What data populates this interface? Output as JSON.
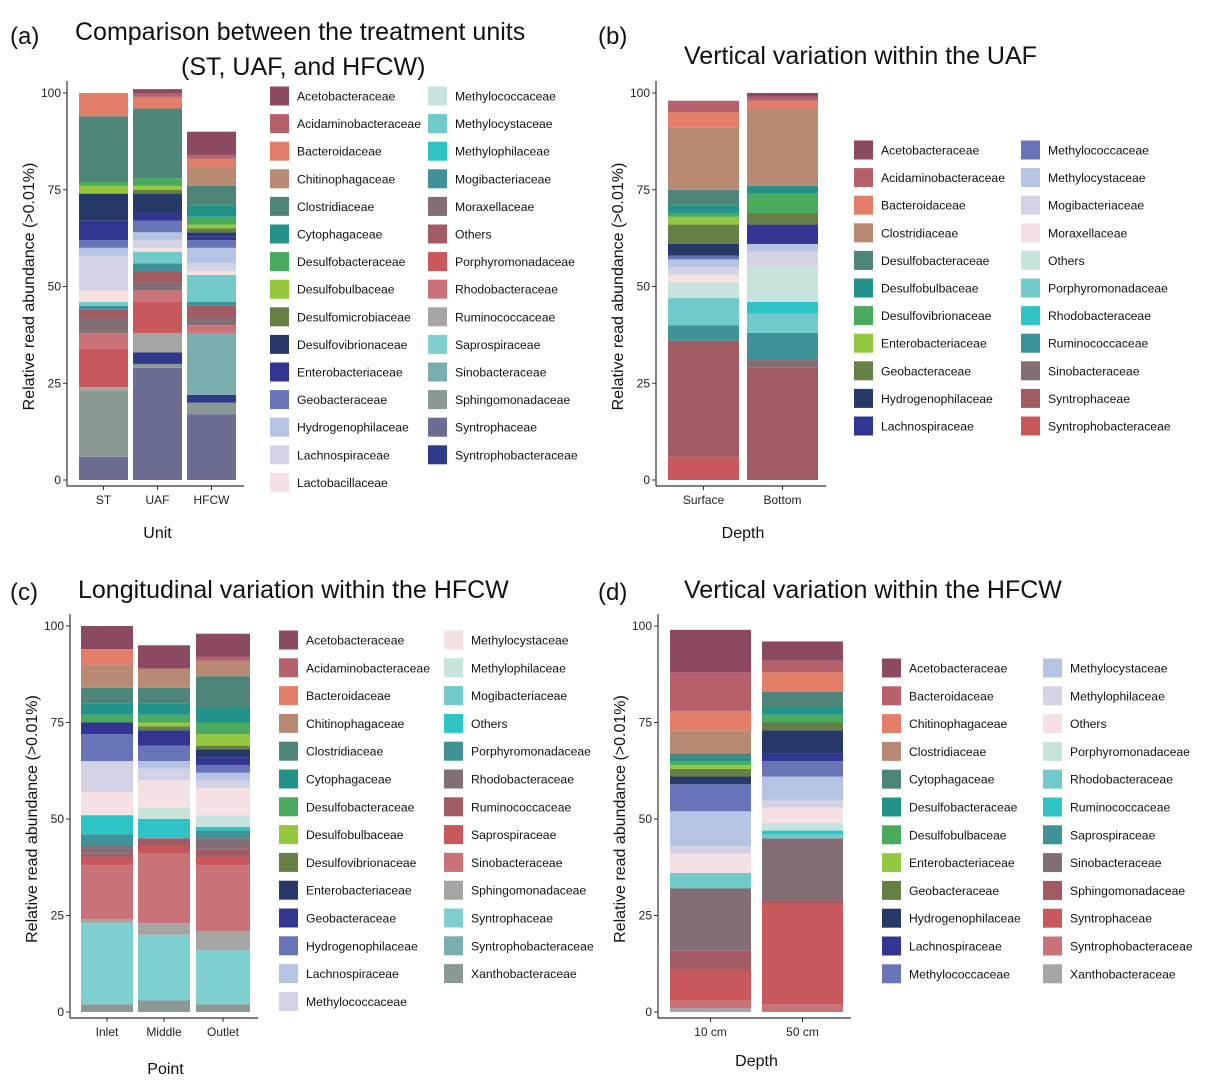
{
  "chart_data": [
    {
      "panel_label": "(a)",
      "title_lines": [
        "Comparison between the treatment units",
        "(ST, UAF, and HFCW)"
      ],
      "type": "stacked-bar",
      "xlabel": "Unit",
      "ylabel": "Relative read abundance (>0.01%)",
      "ylim": [
        0,
        100
      ],
      "yticks": [
        "0",
        "25",
        "50",
        "75",
        "100"
      ],
      "categories": [
        "ST",
        "UAF",
        "HFCW"
      ],
      "legend": [
        "Acetobacteraceae",
        "Acidaminobacteraceae",
        "Bacteroidaceae",
        "Chitinophagaceae",
        "Clostridiaceae",
        "Cytophagaceae",
        "Desulfobacteraceae",
        "Desulfobulbaceae",
        "Desulfomicrobiaceae",
        "Desulfovibrionaceae",
        "Enterobacteriaceae",
        "Geobacteraceae",
        "Hydrogenophilaceae",
        "Lachnospiraceae",
        "Lactobacillaceae",
        "Methylococcaceae",
        "Methylocystaceae",
        "Methylophilaceae",
        "Mogibacteriaceae",
        "Moraxellaceae",
        "Others",
        "Porphyromonadaceae",
        "Rhodobacteraceae",
        "Ruminococcaceae",
        "Saprospiraceae",
        "Sinobacteraceae",
        "Sphingomonadaceae",
        "Syntrophaceae",
        "Syntrophobacteraceae"
      ],
      "legend_colors": [
        "#8b4a62",
        "#b5606a",
        "#e37f68",
        "#b88a73",
        "#4e8579",
        "#239288",
        "#4aab5e",
        "#94c83e",
        "#657f45",
        "#273969",
        "#323591",
        "#6774b8",
        "#b5c4e2",
        "#d4d3e6",
        "#f5e0e3",
        "#c6e3de",
        "#71cac9",
        "#2ec4c6",
        "#3f9298",
        "#826e74",
        "#a35b63",
        "#c8585c",
        "#c97379",
        "#a5a5a5",
        "#7ecfd0",
        "#7aadad",
        "#8a9896",
        "#6a6c91",
        "#2e3a8a"
      ],
      "series": [
        {
          "name": "Syntrophaceae",
          "values": [
            6,
            29,
            17
          ]
        },
        {
          "name": "Sphingomonadaceae",
          "values": [
            17,
            1,
            3
          ]
        },
        {
          "name": "Syntrophobacteraceae",
          "values": [
            0,
            3,
            2
          ]
        },
        {
          "name": "Ruminococcaceae",
          "values": [
            1,
            5,
            0
          ]
        },
        {
          "name": "Porphyromonadaceae",
          "values": [
            10,
            8,
            0
          ]
        },
        {
          "name": "Sinobacteraceae",
          "values": [
            0,
            0,
            16
          ]
        },
        {
          "name": "Rhodobacteraceae",
          "values": [
            4,
            3,
            2
          ]
        },
        {
          "name": "Moraxellaceae",
          "values": [
            4,
            2,
            2
          ]
        },
        {
          "name": "Others",
          "values": [
            2,
            3,
            3
          ]
        },
        {
          "name": "Mogibacteriaceae",
          "values": [
            1,
            2,
            1
          ]
        },
        {
          "name": "Methylocystaceae",
          "values": [
            1,
            3,
            7
          ]
        },
        {
          "name": "Lactobacillaceae",
          "values": [
            3,
            1,
            1
          ]
        },
        {
          "name": "Lachnospiraceae",
          "values": [
            9,
            2,
            2
          ]
        },
        {
          "name": "Hydrogenophilaceae",
          "values": [
            2,
            2,
            4
          ]
        },
        {
          "name": "Geobacteraceae",
          "values": [
            2,
            3,
            2
          ]
        },
        {
          "name": "Enterobacteriaceae",
          "values": [
            5,
            2,
            1
          ]
        },
        {
          "name": "Desulfovibrionaceae",
          "values": [
            7,
            5,
            1
          ]
        },
        {
          "name": "Desulfomicrobiaceae",
          "values": [
            0,
            1,
            1
          ]
        },
        {
          "name": "Desulfobulbaceae",
          "values": [
            2,
            1,
            1
          ]
        },
        {
          "name": "Desulfobacteraceae",
          "values": [
            1,
            2,
            2
          ]
        },
        {
          "name": "Cytophagaceae",
          "values": [
            0,
            0,
            3
          ]
        },
        {
          "name": "Clostridiaceae",
          "values": [
            17,
            18,
            5
          ]
        },
        {
          "name": "Chitinophagaceae",
          "values": [
            0,
            0,
            5
          ]
        },
        {
          "name": "Bacteroidaceae",
          "values": [
            6,
            3,
            2
          ]
        },
        {
          "name": "Acidaminobacteraceae",
          "values": [
            0,
            1,
            1
          ]
        },
        {
          "name": "Acetobacteraceae",
          "values": [
            0,
            1,
            6
          ]
        }
      ]
    },
    {
      "panel_label": "(b)",
      "title_lines": [
        "Vertical variation within the UAF"
      ],
      "type": "stacked-bar",
      "xlabel": "Depth",
      "ylabel": "Relative read abundance (>0.01%)",
      "ylim": [
        0,
        100
      ],
      "yticks": [
        "0",
        "25",
        "50",
        "75",
        "100"
      ],
      "categories": [
        "Surface",
        "Bottom"
      ],
      "legend": [
        "Acetobacteraceae",
        "Acidaminobacteraceae",
        "Bacteroidaceae",
        "Clostridiaceae",
        "Desulfobacteraceae",
        "Desulfobulbaceae",
        "Desulfovibrionaceae",
        "Enterobacteriaceae",
        "Geobacteraceae",
        "Hydrogenophilaceae",
        "Lachnospiraceae",
        "Methylococcaceae",
        "Methylocystaceae",
        "Mogibacteriaceae",
        "Moraxellaceae",
        "Others",
        "Porphyromonadaceae",
        "Rhodobacteraceae",
        "Ruminococcaceae",
        "Sinobacteraceae",
        "Syntrophaceae",
        "Syntrophobacteraceae"
      ],
      "legend_colors": [
        "#8b4a62",
        "#b5606a",
        "#e37f68",
        "#b88a73",
        "#4e8579",
        "#239288",
        "#4aab5e",
        "#94c83e",
        "#657f45",
        "#273969",
        "#323591",
        "#6774b8",
        "#b5c4e2",
        "#d4d3e6",
        "#f5e0e3",
        "#c6e3de",
        "#71cac9",
        "#2ec4c6",
        "#3f9298",
        "#826e74",
        "#a35b63",
        "#c8585c"
      ],
      "series": [
        {
          "name": "Syntrophobacteraceae",
          "values": [
            6,
            0
          ]
        },
        {
          "name": "Syntrophaceae",
          "values": [
            30,
            29
          ]
        },
        {
          "name": "Sinobacteraceae",
          "values": [
            0,
            2
          ]
        },
        {
          "name": "Ruminococcaceae",
          "values": [
            4,
            7
          ]
        },
        {
          "name": "Porphyromonadaceae",
          "values": [
            7,
            5
          ]
        },
        {
          "name": "Rhodobacteraceae",
          "values": [
            0,
            3
          ]
        },
        {
          "name": "Others",
          "values": [
            4,
            9
          ]
        },
        {
          "name": "Moraxellaceae",
          "values": [
            2,
            0
          ]
        },
        {
          "name": "Mogibacteriaceae",
          "values": [
            2,
            4
          ]
        },
        {
          "name": "Methylocystaceae",
          "values": [
            2,
            2
          ]
        },
        {
          "name": "Methylococcaceae",
          "values": [
            1,
            0
          ]
        },
        {
          "name": "Lachnospiraceae",
          "values": [
            0,
            5
          ]
        },
        {
          "name": "Hydrogenophilaceae",
          "values": [
            3,
            0
          ]
        },
        {
          "name": "Geobacteraceae",
          "values": [
            5,
            3
          ]
        },
        {
          "name": "Enterobacteriaceae",
          "values": [
            2,
            0
          ]
        },
        {
          "name": "Desulfovibrionaceae",
          "values": [
            1,
            5
          ]
        },
        {
          "name": "Desulfobulbaceae",
          "values": [
            2,
            2
          ]
        },
        {
          "name": "Desulfobacteraceae",
          "values": [
            4,
            0
          ]
        },
        {
          "name": "Clostridiaceae",
          "values": [
            16,
            20
          ]
        },
        {
          "name": "Bacteroidaceae",
          "values": [
            4,
            2
          ]
        },
        {
          "name": "Acidaminobacteraceae",
          "values": [
            3,
            1
          ]
        },
        {
          "name": "Acetobacteraceae",
          "values": [
            0,
            1
          ]
        }
      ]
    },
    {
      "panel_label": "(c)",
      "title_lines": [
        "Longitudinal variation within the HFCW"
      ],
      "type": "stacked-bar",
      "xlabel": "Point",
      "ylabel": "Relative read abundance (>0.01%)",
      "ylim": [
        0,
        100
      ],
      "yticks": [
        "0",
        "25",
        "50",
        "75",
        "100"
      ],
      "categories": [
        "Inlet",
        "Middle",
        "Outlet"
      ],
      "legend": [
        "Acetobacteraceae",
        "Acidaminobacteraceae",
        "Bacteroidaceae",
        "Chitinophagaceae",
        "Clostridiaceae",
        "Cytophagaceae",
        "Desulfobacteraceae",
        "Desulfobulbaceae",
        "Desulfovibrionaceae",
        "Enterobacteriaceae",
        "Geobacteraceae",
        "Hydrogenophilaceae",
        "Lachnospiraceae",
        "Methylococcaceae",
        "Methylocystaceae",
        "Methylophilaceae",
        "Mogibacteriaceae",
        "Others",
        "Porphyromonadaceae",
        "Rhodobacteraceae",
        "Ruminococcaceae",
        "Saprospiraceae",
        "Sinobacteraceae",
        "Sphingomonadaceae",
        "Syntrophaceae",
        "Syntrophobacteraceae",
        "Xanthobacteraceae"
      ],
      "legend_colors": [
        "#8b4a62",
        "#b5606a",
        "#e37f68",
        "#b88a73",
        "#4e8579",
        "#239288",
        "#4aab5e",
        "#94c83e",
        "#657f45",
        "#273969",
        "#323591",
        "#6774b8",
        "#b5c4e2",
        "#d4d3e6",
        "#f5e0e3",
        "#c6e3de",
        "#71cac9",
        "#2ec4c6",
        "#3f9298",
        "#826e74",
        "#a35b63",
        "#c8585c",
        "#c97379",
        "#a5a5a5",
        "#7ecfd0",
        "#7aadad",
        "#8a9896"
      ],
      "series": [
        {
          "name": "Xanthobacteraceae",
          "values": [
            2,
            3,
            2
          ]
        },
        {
          "name": "Syntrophaceae",
          "values": [
            21,
            17,
            14
          ]
        },
        {
          "name": "Sphingomonadaceae",
          "values": [
            1,
            3,
            5
          ]
        },
        {
          "name": "Sinobacteraceae",
          "values": [
            14,
            18,
            17
          ]
        },
        {
          "name": "Saprospiraceae",
          "values": [
            2,
            2,
            2
          ]
        },
        {
          "name": "Ruminococcaceae",
          "values": [
            1,
            2,
            2
          ]
        },
        {
          "name": "Rhodobacteraceae",
          "values": [
            2,
            0,
            3
          ]
        },
        {
          "name": "Porphyromonadaceae",
          "values": [
            3,
            0,
            2
          ]
        },
        {
          "name": "Others",
          "values": [
            5,
            5,
            1
          ]
        },
        {
          "name": "Methylophilaceae",
          "values": [
            0,
            3,
            3
          ]
        },
        {
          "name": "Methylocystaceae",
          "values": [
            6,
            7,
            7
          ]
        },
        {
          "name": "Methylococcaceae",
          "values": [
            8,
            3,
            2
          ]
        },
        {
          "name": "Lachnospiraceae",
          "values": [
            0,
            2,
            2
          ]
        },
        {
          "name": "Hydrogenophilaceae",
          "values": [
            7,
            4,
            2
          ]
        },
        {
          "name": "Geobacteraceae",
          "values": [
            3,
            4,
            2
          ]
        },
        {
          "name": "Enterobacteriaceae",
          "values": [
            0,
            0,
            2
          ]
        },
        {
          "name": "Desulfovibrionaceae",
          "values": [
            0,
            1,
            1
          ]
        },
        {
          "name": "Desulfobulbaceae",
          "values": [
            0,
            1,
            3
          ]
        },
        {
          "name": "Desulfobacteraceae",
          "values": [
            2,
            2,
            3
          ]
        },
        {
          "name": "Cytophagaceae",
          "values": [
            3,
            3,
            4
          ]
        },
        {
          "name": "Clostridiaceae",
          "values": [
            4,
            4,
            8
          ]
        },
        {
          "name": "Chitinophagaceae",
          "values": [
            6,
            5,
            4
          ]
        },
        {
          "name": "Bacteroidaceae",
          "values": [
            4,
            0,
            0
          ]
        },
        {
          "name": "Acidaminobacteraceae",
          "values": [
            0,
            0,
            1
          ]
        },
        {
          "name": "Acetobacteraceae",
          "values": [
            6,
            6,
            6
          ]
        }
      ]
    },
    {
      "panel_label": "(d)",
      "title_lines": [
        "Vertical variation within the HFCW"
      ],
      "type": "stacked-bar",
      "xlabel": "Depth",
      "ylabel": "Relative read abundance (>0.01%)",
      "ylim": [
        0,
        100
      ],
      "yticks": [
        "0",
        "25",
        "50",
        "75",
        "100"
      ],
      "categories": [
        "10 cm",
        "50 cm"
      ],
      "legend": [
        "Acetobacteraceae",
        "Bacteroidaceae",
        "Chitinophagaceae",
        "Clostridiaceae",
        "Cytophagaceae",
        "Desulfobacteraceae",
        "Desulfobulbaceae",
        "Enterobacteriaceae",
        "Geobacteraceae",
        "Hydrogenophilaceae",
        "Lachnospiraceae",
        "Methylococcaceae",
        "Methylocystaceae",
        "Methylophilaceae",
        "Others",
        "Porphyromonadaceae",
        "Rhodobacteraceae",
        "Ruminococcaceae",
        "Saprospiraceae",
        "Sinobacteraceae",
        "Sphingomonadaceae",
        "Syntrophaceae",
        "Syntrophobacteraceae",
        "Xanthobacteraceae"
      ],
      "legend_colors": [
        "#8b4a62",
        "#b5606a",
        "#e37f68",
        "#b88a73",
        "#4e8579",
        "#239288",
        "#4aab5e",
        "#94c83e",
        "#657f45",
        "#273969",
        "#323591",
        "#6774b8",
        "#b5c4e2",
        "#d4d3e6",
        "#f5e0e3",
        "#c6e3de",
        "#71cac9",
        "#2ec4c6",
        "#3f9298",
        "#826e74",
        "#a35b63",
        "#c8585c",
        "#c97379",
        "#a5a5a5"
      ],
      "series": [
        {
          "name": "Xanthobacteraceae",
          "values": [
            1,
            0
          ]
        },
        {
          "name": "Syntrophobacteraceae",
          "values": [
            2,
            2
          ]
        },
        {
          "name": "Syntrophaceae",
          "values": [
            8,
            26
          ]
        },
        {
          "name": "Sphingomonadaceae",
          "values": [
            5,
            1
          ]
        },
        {
          "name": "Sinobacteraceae",
          "values": [
            16,
            16
          ]
        },
        {
          "name": "Rhodobacteraceae",
          "values": [
            4,
            1
          ]
        },
        {
          "name": "Ruminococcaceae",
          "values": [
            0,
            1
          ]
        },
        {
          "name": "Porphyromonadaceae",
          "values": [
            0,
            2
          ]
        },
        {
          "name": "Others",
          "values": [
            5,
            4
          ]
        },
        {
          "name": "Methylophilaceae",
          "values": [
            2,
            2
          ]
        },
        {
          "name": "Methylocystaceae",
          "values": [
            9,
            6
          ]
        },
        {
          "name": "Methylococcaceae",
          "values": [
            7,
            4
          ]
        },
        {
          "name": "Lachnospiraceae",
          "values": [
            0,
            2
          ]
        },
        {
          "name": "Hydrogenophilaceae",
          "values": [
            2,
            6
          ]
        },
        {
          "name": "Geobacteraceae",
          "values": [
            2,
            2
          ]
        },
        {
          "name": "Enterobacteriaceae",
          "values": [
            1,
            0
          ]
        },
        {
          "name": "Desulfobulbaceae",
          "values": [
            1,
            2
          ]
        },
        {
          "name": "Desulfobacteraceae",
          "values": [
            1,
            2
          ]
        },
        {
          "name": "Cytophagaceae",
          "values": [
            1,
            4
          ]
        },
        {
          "name": "Clostridiaceae",
          "values": [
            6,
            0
          ]
        },
        {
          "name": "Chitinophagaceae",
          "values": [
            5,
            5
          ]
        },
        {
          "name": "Bacteroidaceae",
          "values": [
            10,
            3
          ]
        },
        {
          "name": "Acetobacteraceae",
          "values": [
            11,
            5
          ]
        }
      ]
    }
  ]
}
